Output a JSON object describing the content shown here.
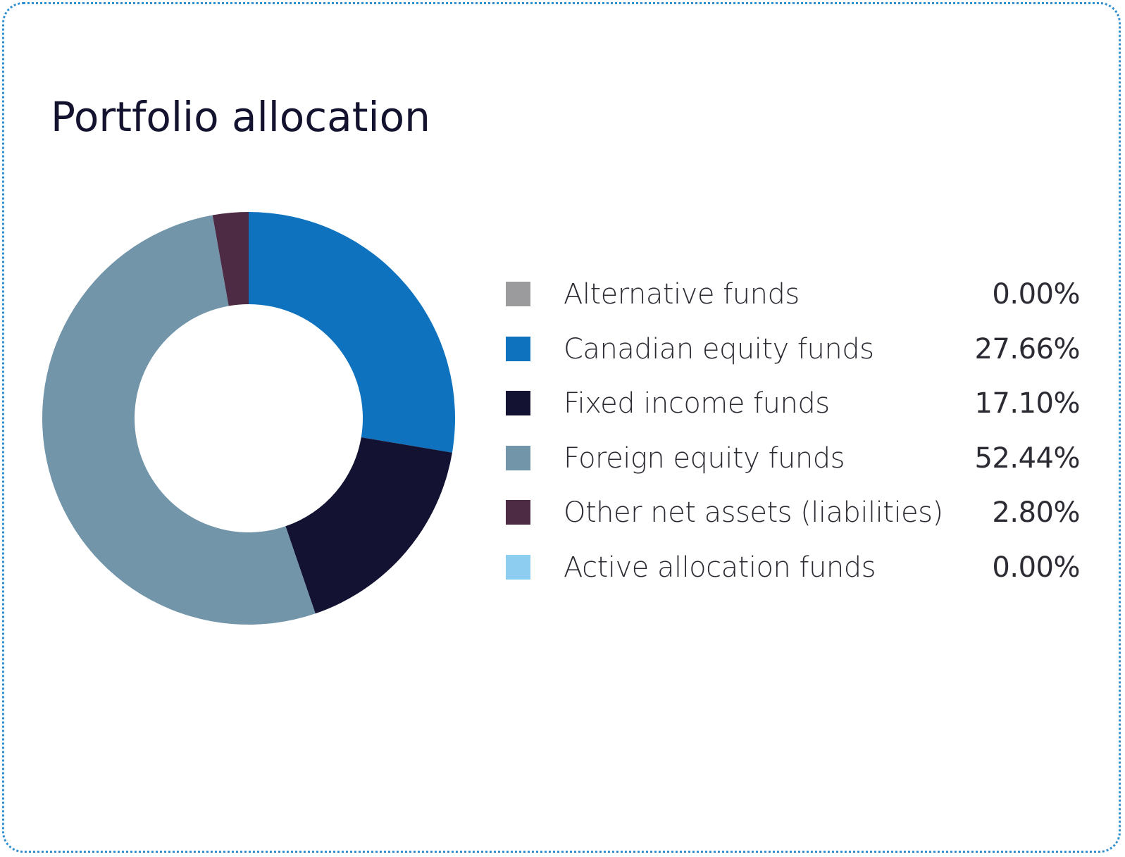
{
  "card": {
    "border_color": "#2f8fd0"
  },
  "title": "Portfolio allocation",
  "chart_data": {
    "type": "pie",
    "title": "Portfolio allocation",
    "donut": true,
    "legend": "right",
    "slices": [
      {
        "label": "Alternative funds",
        "value": 0.0,
        "value_label": "0.00%",
        "color": "#9b9b9d"
      },
      {
        "label": "Canadian equity funds",
        "value": 27.66,
        "value_label": "27.66%",
        "color": "#0e72be"
      },
      {
        "label": "Fixed income funds",
        "value": 17.1,
        "value_label": "17.10%",
        "color": "#131232"
      },
      {
        "label": "Foreign equity funds",
        "value": 52.44,
        "value_label": "52.44%",
        "color": "#7295aa"
      },
      {
        "label": "Other net assets (liabilities)",
        "value": 2.8,
        "value_label": "2.80%",
        "color": "#4d2b45"
      },
      {
        "label": "Active allocation funds",
        "value": 0.0,
        "value_label": "0.00%",
        "color": "#8ccdf0"
      }
    ]
  }
}
